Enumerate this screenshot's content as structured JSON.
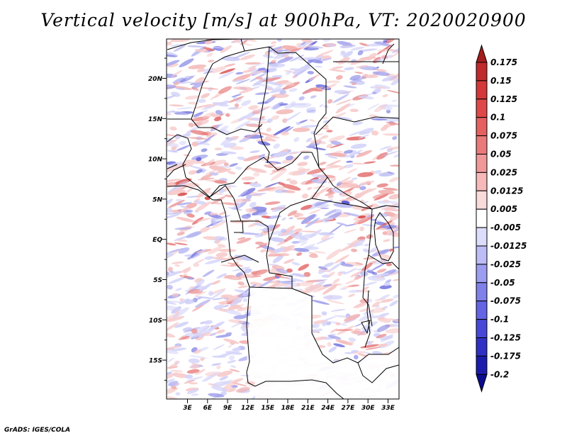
{
  "title": "Vertical velocity [m/s] at 900hPa, VT: 2020020900",
  "footer": "GrADS: IGES/COLA",
  "map": {
    "lat_labels": [
      "20N",
      "15N",
      "10N",
      "5N",
      "EQ",
      "5S",
      "10S",
      "15S"
    ],
    "lon_labels": [
      "3E",
      "6E",
      "9E",
      "12E",
      "15E",
      "18E",
      "21E",
      "24E",
      "27E",
      "30E",
      "33E"
    ]
  },
  "colorbar": {
    "labels": [
      "0.175",
      "0.15",
      "0.125",
      "0.1",
      "0.075",
      "0.05",
      "0.025",
      "0.0125",
      "0.005",
      "-0.005",
      "-0.0125",
      "-0.025",
      "-0.05",
      "-0.075",
      "-0.1",
      "-0.125",
      "-0.175",
      "-0.2"
    ],
    "colors": [
      "#a51c1c",
      "#c02a2a",
      "#d43838",
      "#e04848",
      "#e66060",
      "#ea7a7a",
      "#f09898",
      "#f6b8b8",
      "#fbdada",
      "#ffffff",
      "#dcdcfb",
      "#bcbcf6",
      "#9c9cf0",
      "#8080ea",
      "#6464e4",
      "#4848d8",
      "#3030c4",
      "#1c1cac",
      "#0c0c90"
    ]
  }
}
